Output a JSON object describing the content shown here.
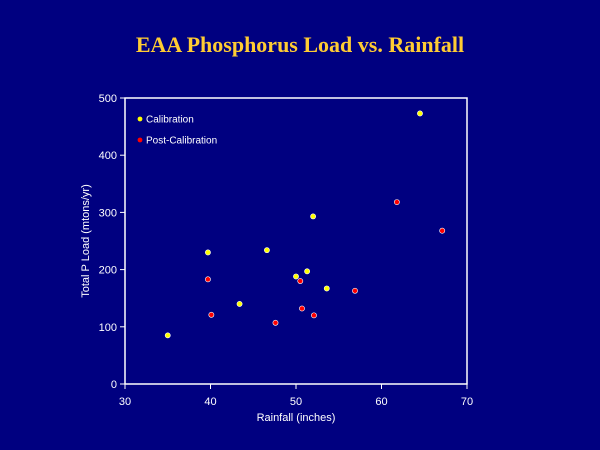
{
  "chart_data": {
    "type": "scatter",
    "title": "EAA Phosphorus Load vs. Rainfall",
    "xlabel": "Rainfall (inches)",
    "ylabel": "Total P Load (mtons/yr)",
    "xlim": [
      30,
      70
    ],
    "ylim": [
      0,
      500
    ],
    "xticks": [
      30,
      40,
      50,
      60,
      70
    ],
    "yticks": [
      0,
      100,
      200,
      300,
      400,
      500
    ],
    "grid": false,
    "legend": "top-left",
    "series": [
      {
        "name": "Calibration",
        "color": "#ffff00",
        "points": [
          {
            "x": 35.0,
            "y": 85
          },
          {
            "x": 39.7,
            "y": 230
          },
          {
            "x": 43.4,
            "y": 140
          },
          {
            "x": 46.6,
            "y": 234
          },
          {
            "x": 50.0,
            "y": 188
          },
          {
            "x": 51.3,
            "y": 197
          },
          {
            "x": 52.0,
            "y": 293
          },
          {
            "x": 53.6,
            "y": 167
          },
          {
            "x": 64.5,
            "y": 473
          }
        ]
      },
      {
        "name": "Post-Calibration",
        "color": "#ff0000",
        "points": [
          {
            "x": 39.7,
            "y": 183
          },
          {
            "x": 40.1,
            "y": 121
          },
          {
            "x": 47.6,
            "y": 107
          },
          {
            "x": 50.5,
            "y": 180
          },
          {
            "x": 50.7,
            "y": 132
          },
          {
            "x": 52.1,
            "y": 120
          },
          {
            "x": 56.9,
            "y": 163
          },
          {
            "x": 61.8,
            "y": 318
          },
          {
            "x": 67.1,
            "y": 268
          }
        ]
      }
    ]
  }
}
